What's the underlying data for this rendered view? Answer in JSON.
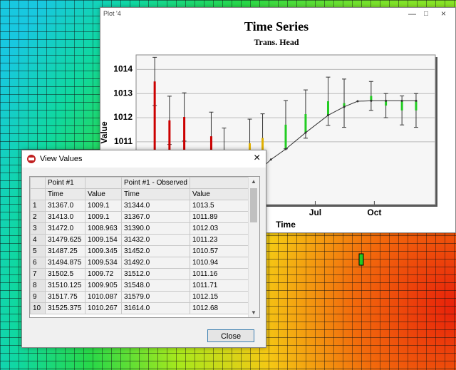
{
  "plot_window": {
    "title": "Plot '4",
    "chart": {
      "type": "line",
      "title": "Time Series",
      "subtitle": "Trans. Head",
      "y_label": "Value",
      "x_label": "Time",
      "xlim": [
        31315,
        31781
      ],
      "ylim": [
        1008.4,
        1014.6
      ],
      "yticks": [
        1011,
        1012,
        1013,
        1014
      ],
      "xticks": [
        {
          "value": 31594,
          "label": "Jul"
        },
        {
          "value": 31686,
          "label": "Oct"
        }
      ],
      "grid": true,
      "computed": {
        "color": "#333333",
        "x": [
          31367,
          31413,
          31472,
          31525,
          31548,
          31579,
          31614,
          31639,
          31660,
          31681,
          31704,
          31729,
          31751
        ],
        "values": [
          1009.1,
          1009.1,
          1008.963,
          1010.267,
          1010.7,
          1011.38,
          1012.1,
          1012.45,
          1012.68,
          1012.7,
          1012.7,
          1012.7,
          1012.7
        ]
      },
      "observed": {
        "x": [
          31344,
          31367,
          31390,
          31432,
          31452,
          31492,
          31512,
          31548,
          31579,
          31614,
          31639,
          31681,
          31704,
          31729,
          31751
        ],
        "values": [
          1013.5,
          1011.89,
          1012.03,
          1011.23,
          1010.57,
          1010.94,
          1011.16,
          1011.71,
          1012.15,
          1012.68,
          1012.6,
          1012.9,
          1012.5,
          1012.3,
          1012.3
        ],
        "errors": [
          1.0,
          1.0,
          1.0,
          1.0,
          1.0,
          1.0,
          1.0,
          1.0,
          1.0,
          1.0,
          1.0,
          0.6,
          0.5,
          0.6,
          0.7
        ],
        "colors": [
          "#cc0000",
          "#cc0000",
          "#cc0000",
          "#cc0000",
          "#cc0000",
          "#e0b000",
          "#e0b000",
          "#22cc22",
          "#22cc22",
          "#22cc22",
          "#22cc22",
          "#22cc22",
          "#22cc22",
          "#22cc22",
          "#22cc22"
        ]
      }
    }
  },
  "dialog": {
    "title": "View Values",
    "table": {
      "group_headers": [
        "Point #1",
        "Point #1 - Observed"
      ],
      "columns": [
        "Time",
        "Value",
        "Time",
        "Value"
      ],
      "rows": [
        [
          "1",
          "31367.0",
          "1009.1",
          "31344.0",
          "1013.5"
        ],
        [
          "2",
          "31413.0",
          "1009.1",
          "31367.0",
          "1011.89"
        ],
        [
          "3",
          "31472.0",
          "1008.963",
          "31390.0",
          "1012.03"
        ],
        [
          "4",
          "31479.625",
          "1009.154",
          "31432.0",
          "1011.23"
        ],
        [
          "5",
          "31487.25",
          "1009.345",
          "31452.0",
          "1010.57"
        ],
        [
          "6",
          "31494.875",
          "1009.534",
          "31492.0",
          "1010.94"
        ],
        [
          "7",
          "31502.5",
          "1009.72",
          "31512.0",
          "1011.16"
        ],
        [
          "8",
          "31510.125",
          "1009.905",
          "31548.0",
          "1011.71"
        ],
        [
          "9",
          "31517.75",
          "1010.087",
          "31579.0",
          "1012.15"
        ],
        [
          "10",
          "31525.375",
          "1010.267",
          "31614.0",
          "1012.68"
        ]
      ]
    },
    "close_button": "Close"
  }
}
